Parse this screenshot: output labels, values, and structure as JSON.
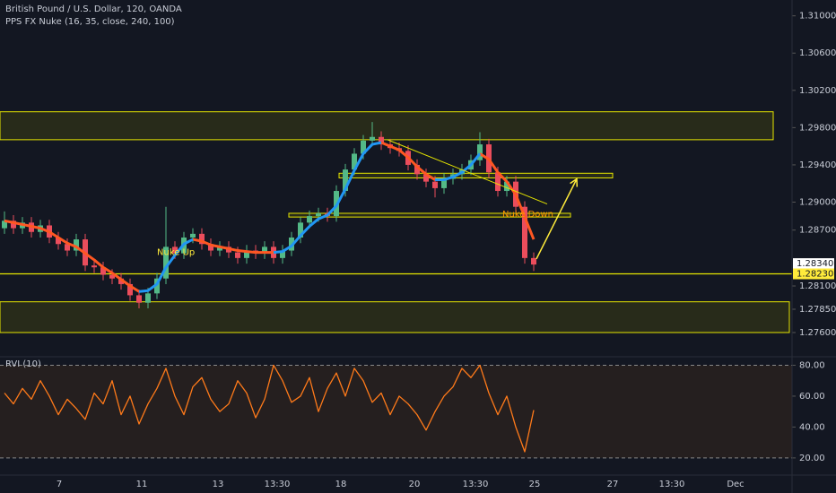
{
  "chart_data": [
    {
      "type": "candlestick",
      "title": "British Pound / U.S. Dollar, 120, OANDA",
      "subtitle": "PPS FX Nuke (16, 35, close, 240, 100)",
      "up_color": "#53b987",
      "down_color": "#eb4d5c",
      "x": [
        0.5,
        1.5,
        2.5,
        3.5,
        4.5,
        5.5,
        6.5,
        7.5,
        8.5,
        9.5,
        10.5,
        11.5,
        12.5,
        13.5,
        14.5,
        15.5,
        16.5,
        17.5,
        18.5,
        19.5,
        20.5,
        21.5,
        22.5,
        23.5,
        24.5,
        25.5,
        26.5,
        27.5,
        28.5,
        29.5,
        30.5,
        31.5,
        32.5,
        33.5,
        34.5,
        35.5,
        36.5,
        37.5,
        38.5,
        39.5,
        40.5,
        41.5,
        42.5,
        43.5,
        44.5,
        45.5,
        46.5,
        47.5,
        48.5,
        49.5,
        50.5,
        51.5,
        52.5,
        53.5,
        54.5,
        55.5,
        56.5,
        57.5,
        58.5,
        59.5
      ],
      "open": [
        1.2872,
        1.288,
        1.2872,
        1.2878,
        1.2868,
        1.2875,
        1.2862,
        1.2855,
        1.2848,
        1.286,
        1.2832,
        1.283,
        1.2822,
        1.2818,
        1.2812,
        1.28,
        1.2792,
        1.2802,
        1.2818,
        1.2852,
        1.2845,
        1.2862,
        1.2866,
        1.2855,
        1.2848,
        1.2852,
        1.2846,
        1.284,
        1.2848,
        1.2845,
        1.2852,
        1.284,
        1.2848,
        1.2862,
        1.2878,
        1.2885,
        1.2888,
        1.2885,
        1.2912,
        1.2935,
        1.2952,
        1.2966,
        1.297,
        1.2962,
        1.2958,
        1.2955,
        1.294,
        1.293,
        1.2922,
        1.2915,
        1.2925,
        1.293,
        1.2935,
        1.2945,
        1.2962,
        1.2932,
        1.2912,
        1.2922,
        1.2895,
        1.284
      ],
      "high": [
        1.289,
        1.2886,
        1.2884,
        1.2884,
        1.2881,
        1.2881,
        1.2868,
        1.2861,
        1.2866,
        1.2866,
        1.2838,
        1.2836,
        1.2828,
        1.2824,
        1.2818,
        1.2806,
        1.2808,
        1.2824,
        1.2895,
        1.2858,
        1.2868,
        1.2872,
        1.2872,
        1.2861,
        1.2858,
        1.2858,
        1.2852,
        1.2854,
        1.2854,
        1.2858,
        1.2858,
        1.2854,
        1.2868,
        1.2884,
        1.2891,
        1.2894,
        1.2894,
        1.2918,
        1.2941,
        1.2958,
        1.2972,
        1.2986,
        1.2976,
        1.2968,
        1.2964,
        1.2961,
        1.2946,
        1.2936,
        1.2928,
        1.2931,
        1.2936,
        1.2941,
        1.2951,
        1.2975,
        1.2968,
        1.2938,
        1.2928,
        1.2928,
        1.2901,
        1.2846
      ],
      "low": [
        1.2866,
        1.2866,
        1.2866,
        1.2862,
        1.2862,
        1.2856,
        1.2849,
        1.2842,
        1.2842,
        1.2826,
        1.2824,
        1.2816,
        1.2812,
        1.2806,
        1.2794,
        1.2786,
        1.2786,
        1.2796,
        1.2812,
        1.2839,
        1.2839,
        1.2856,
        1.2849,
        1.2842,
        1.2842,
        1.284,
        1.2834,
        1.2834,
        1.2839,
        1.2839,
        1.2834,
        1.2834,
        1.2842,
        1.2856,
        1.2872,
        1.2879,
        1.2879,
        1.2879,
        1.2906,
        1.2929,
        1.2946,
        1.296,
        1.2956,
        1.2952,
        1.2949,
        1.2934,
        1.2924,
        1.2916,
        1.2905,
        1.2909,
        1.2919,
        1.2924,
        1.2929,
        1.2939,
        1.2926,
        1.2906,
        1.2906,
        1.2889,
        1.2834,
        1.2826
      ],
      "close": [
        1.288,
        1.2872,
        1.2878,
        1.2868,
        1.2875,
        1.2862,
        1.2855,
        1.2848,
        1.286,
        1.2832,
        1.283,
        1.2822,
        1.2818,
        1.2812,
        1.28,
        1.2792,
        1.2802,
        1.2818,
        1.2852,
        1.2845,
        1.2862,
        1.2866,
        1.2855,
        1.2848,
        1.2852,
        1.2846,
        1.284,
        1.2848,
        1.2845,
        1.2852,
        1.284,
        1.2848,
        1.2862,
        1.2878,
        1.2885,
        1.2888,
        1.2885,
        1.2912,
        1.2935,
        1.2952,
        1.2966,
        1.297,
        1.2962,
        1.2958,
        1.2955,
        1.294,
        1.293,
        1.2922,
        1.2915,
        1.2925,
        1.293,
        1.2935,
        1.2945,
        1.2962,
        1.2932,
        1.2912,
        1.2922,
        1.2895,
        1.284,
        1.2833
      ],
      "series": [
        {
          "color": "#ff5722",
          "values": [
            1.288,
            1.2878,
            1.2876,
            1.2874,
            1.2872,
            1.2868,
            1.2862,
            1.2856,
            1.2852,
            1.2845,
            1.2838,
            1.283,
            1.2824,
            1.2817,
            1.281,
            1.2804,
            null,
            null,
            null,
            null,
            null,
            1.286,
            1.2858,
            1.2854,
            1.2852,
            1.285,
            1.2848,
            1.2847,
            1.2846,
            1.2846,
            1.2846,
            null,
            null,
            null,
            null,
            null,
            null,
            null,
            null,
            null,
            null,
            null,
            1.2964,
            1.296,
            1.2956,
            1.2948,
            1.2938,
            1.293,
            1.2924,
            null,
            null,
            null,
            null,
            1.2952,
            1.2946,
            1.2932,
            1.2922,
            1.2908,
            1.2884,
            1.286
          ]
        },
        {
          "color": "#2196f3",
          "values": [
            null,
            null,
            null,
            null,
            null,
            null,
            null,
            null,
            null,
            null,
            null,
            null,
            null,
            null,
            null,
            1.2804,
            1.2805,
            1.2812,
            1.283,
            1.2843,
            1.2855,
            1.286,
            null,
            null,
            null,
            null,
            null,
            null,
            null,
            null,
            1.2846,
            1.2847,
            1.2853,
            1.2864,
            1.2874,
            1.2882,
            1.2886,
            1.2896,
            1.2914,
            1.2934,
            1.2952,
            1.2962,
            1.2964,
            null,
            null,
            null,
            null,
            null,
            1.2924,
            1.2924,
            1.2927,
            1.2932,
            1.294,
            1.2952,
            null,
            null,
            null,
            null,
            null,
            null
          ]
        }
      ],
      "zones": [
        {
          "top": 1.2997,
          "bottom": 1.2967,
          "x0": 0,
          "x1": 86.2
        },
        {
          "top": 1.2793,
          "bottom": 1.276,
          "x0": 0,
          "x1": 88
        },
        {
          "top": 1.2931,
          "bottom": 1.2926,
          "x0": 37.8,
          "x1": 68.3
        },
        {
          "top": 1.2888,
          "bottom": 1.2884,
          "x0": 32.2,
          "x1": 63.6
        }
      ],
      "hlines": [
        1.2823
      ],
      "trendlines": [
        {
          "x": [
            43.2,
            61
          ],
          "y": [
            1.2967,
            1.2898
          ]
        }
      ],
      "arrows": [
        {
          "x": [
            59.8,
            64.3
          ],
          "y": [
            1.2839,
            1.2925
          ]
        }
      ],
      "annotations": [
        {
          "text": "Nuke Up",
          "x": 17.5,
          "y": 1.2846,
          "color": "#ffeb3b"
        },
        {
          "text": "Nuke Down",
          "x": 56,
          "y": 1.2887,
          "color": "#ff9800"
        }
      ],
      "price_labels": [
        {
          "value": 1.2834,
          "label": "1.28340",
          "color": "#ffffff"
        },
        {
          "value": 1.2823,
          "label": "1.28230",
          "color": "#ffeb3b"
        }
      ],
      "xlim": [
        0,
        88
      ],
      "xticks": [
        {
          "value": 6.6,
          "label": "7"
        },
        {
          "value": 15.8,
          "label": "11"
        },
        {
          "value": 24.3,
          "label": "13"
        },
        {
          "value": 30.9,
          "label": "13:30"
        },
        {
          "value": 38,
          "label": "18"
        },
        {
          "value": 46.2,
          "label": "20"
        },
        {
          "value": 53,
          "label": "13:30"
        },
        {
          "value": 59.6,
          "label": "25"
        },
        {
          "value": 68.3,
          "label": "27"
        },
        {
          "value": 74.9,
          "label": "13:30"
        },
        {
          "value": 82,
          "label": "Dec"
        }
      ],
      "ylim": [
        1.2734,
        1.3117
      ],
      "yticks": [
        {
          "value": 1.31,
          "label": "1.31000"
        },
        {
          "value": 1.306,
          "label": "1.30600"
        },
        {
          "value": 1.302,
          "label": "1.30200"
        },
        {
          "value": 1.298,
          "label": "1.29800"
        },
        {
          "value": 1.294,
          "label": "1.29400"
        },
        {
          "value": 1.29,
          "label": "1.29000"
        },
        {
          "value": 1.287,
          "label": "1.28700"
        },
        {
          "value": 1.281,
          "label": "1.28100"
        },
        {
          "value": 1.2785,
          "label": "1.27850"
        },
        {
          "value": 1.276,
          "label": "1.27600"
        }
      ]
    },
    {
      "type": "line",
      "title": "RVI (10)",
      "x": [
        0.5,
        1.5,
        2.5,
        3.5,
        4.5,
        5.5,
        6.5,
        7.5,
        8.5,
        9.5,
        10.5,
        11.5,
        12.5,
        13.5,
        14.5,
        15.5,
        16.5,
        17.5,
        18.5,
        19.5,
        20.5,
        21.5,
        22.5,
        23.5,
        24.5,
        25.5,
        26.5,
        27.5,
        28.5,
        29.5,
        30.5,
        31.5,
        32.5,
        33.5,
        34.5,
        35.5,
        36.5,
        37.5,
        38.5,
        39.5,
        40.5,
        41.5,
        42.5,
        43.5,
        44.5,
        45.5,
        46.5,
        47.5,
        48.5,
        49.5,
        50.5,
        51.5,
        52.5,
        53.5,
        54.5,
        55.5,
        56.5,
        57.5,
        58.5,
        59.5
      ],
      "series": [
        {
          "color": "#ff7a1a",
          "values": [
            62,
            55,
            65,
            58,
            70,
            60,
            48,
            58,
            52,
            45,
            62,
            55,
            70,
            48,
            60,
            42,
            55,
            65,
            78,
            60,
            48,
            66,
            72,
            58,
            50,
            55,
            70,
            62,
            46,
            58,
            80,
            70,
            56,
            60,
            72,
            50,
            65,
            75,
            60,
            78,
            70,
            56,
            62,
            48,
            60,
            55,
            48,
            38,
            50,
            60,
            66,
            78,
            72,
            80,
            62,
            48,
            60,
            40,
            24,
            51
          ]
        }
      ],
      "xlim": [
        0,
        88
      ],
      "ylim": [
        8.9,
        85.5
      ],
      "yticks": [
        {
          "value": 80,
          "label": "80.00"
        },
        {
          "value": 60,
          "label": "60.00"
        },
        {
          "value": 40,
          "label": "40.00"
        },
        {
          "value": 20,
          "label": "20.00"
        }
      ],
      "band": [
        20,
        80
      ]
    }
  ]
}
